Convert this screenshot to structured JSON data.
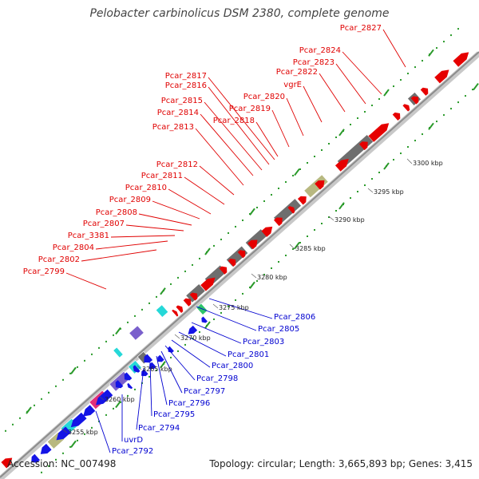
{
  "title": "Pelobacter carbinolicus DSM 2380, complete genome",
  "footer": {
    "accession": "Accession: NC_007498",
    "summary": "Topology: circular; Length: 3,665,893 bp; Genes: 3,415"
  },
  "colors": {
    "forward_gene": "#e60000",
    "reverse_gene": "#1414e6",
    "label_forward": "#e00000",
    "label_reverse": "#0000d0",
    "backbone": "#8c8c8c",
    "tick": "#2a9a2a",
    "gray_block": "#6e6e6e",
    "olive_block": "#b8b880",
    "cyan_block": "#25d8d8",
    "purple_block": "#7a60cc",
    "magenta_block": "#e0307a",
    "green_block": "#2ec46a"
  },
  "forward_labels": [
    "Pcar_2827",
    "Pcar_2824",
    "Pcar_2823",
    "Pcar_2822",
    "vgrE",
    "Pcar_2820",
    "Pcar_2819",
    "Pcar_2818",
    "Pcar_2817",
    "Pcar_2816",
    "Pcar_2815",
    "Pcar_2814",
    "Pcar_2813",
    "Pcar_2812",
    "Pcar_2811",
    "Pcar_2810",
    "Pcar_2809",
    "Pcar_2808",
    "Pcar_2807",
    "Pcar_3381",
    "Pcar_2804",
    "Pcar_2802",
    "Pcar_2799"
  ],
  "reverse_labels": [
    "Pcar_2806",
    "Pcar_2805",
    "Pcar_2803",
    "Pcar_2801",
    "Pcar_2800",
    "Pcar_2798",
    "Pcar_2797",
    "Pcar_2796",
    "Pcar_2795",
    "Pcar_2794",
    "uvrD",
    "Pcar_2792"
  ],
  "position_labels": [
    "3300 kbp",
    "3295 kbp",
    "3290 kbp",
    "3285 kbp",
    "3280 kbp",
    "3275 kbp",
    "3270 kbp",
    "3265 kbp",
    "3260 kbp",
    "3255 kbp"
  ]
}
